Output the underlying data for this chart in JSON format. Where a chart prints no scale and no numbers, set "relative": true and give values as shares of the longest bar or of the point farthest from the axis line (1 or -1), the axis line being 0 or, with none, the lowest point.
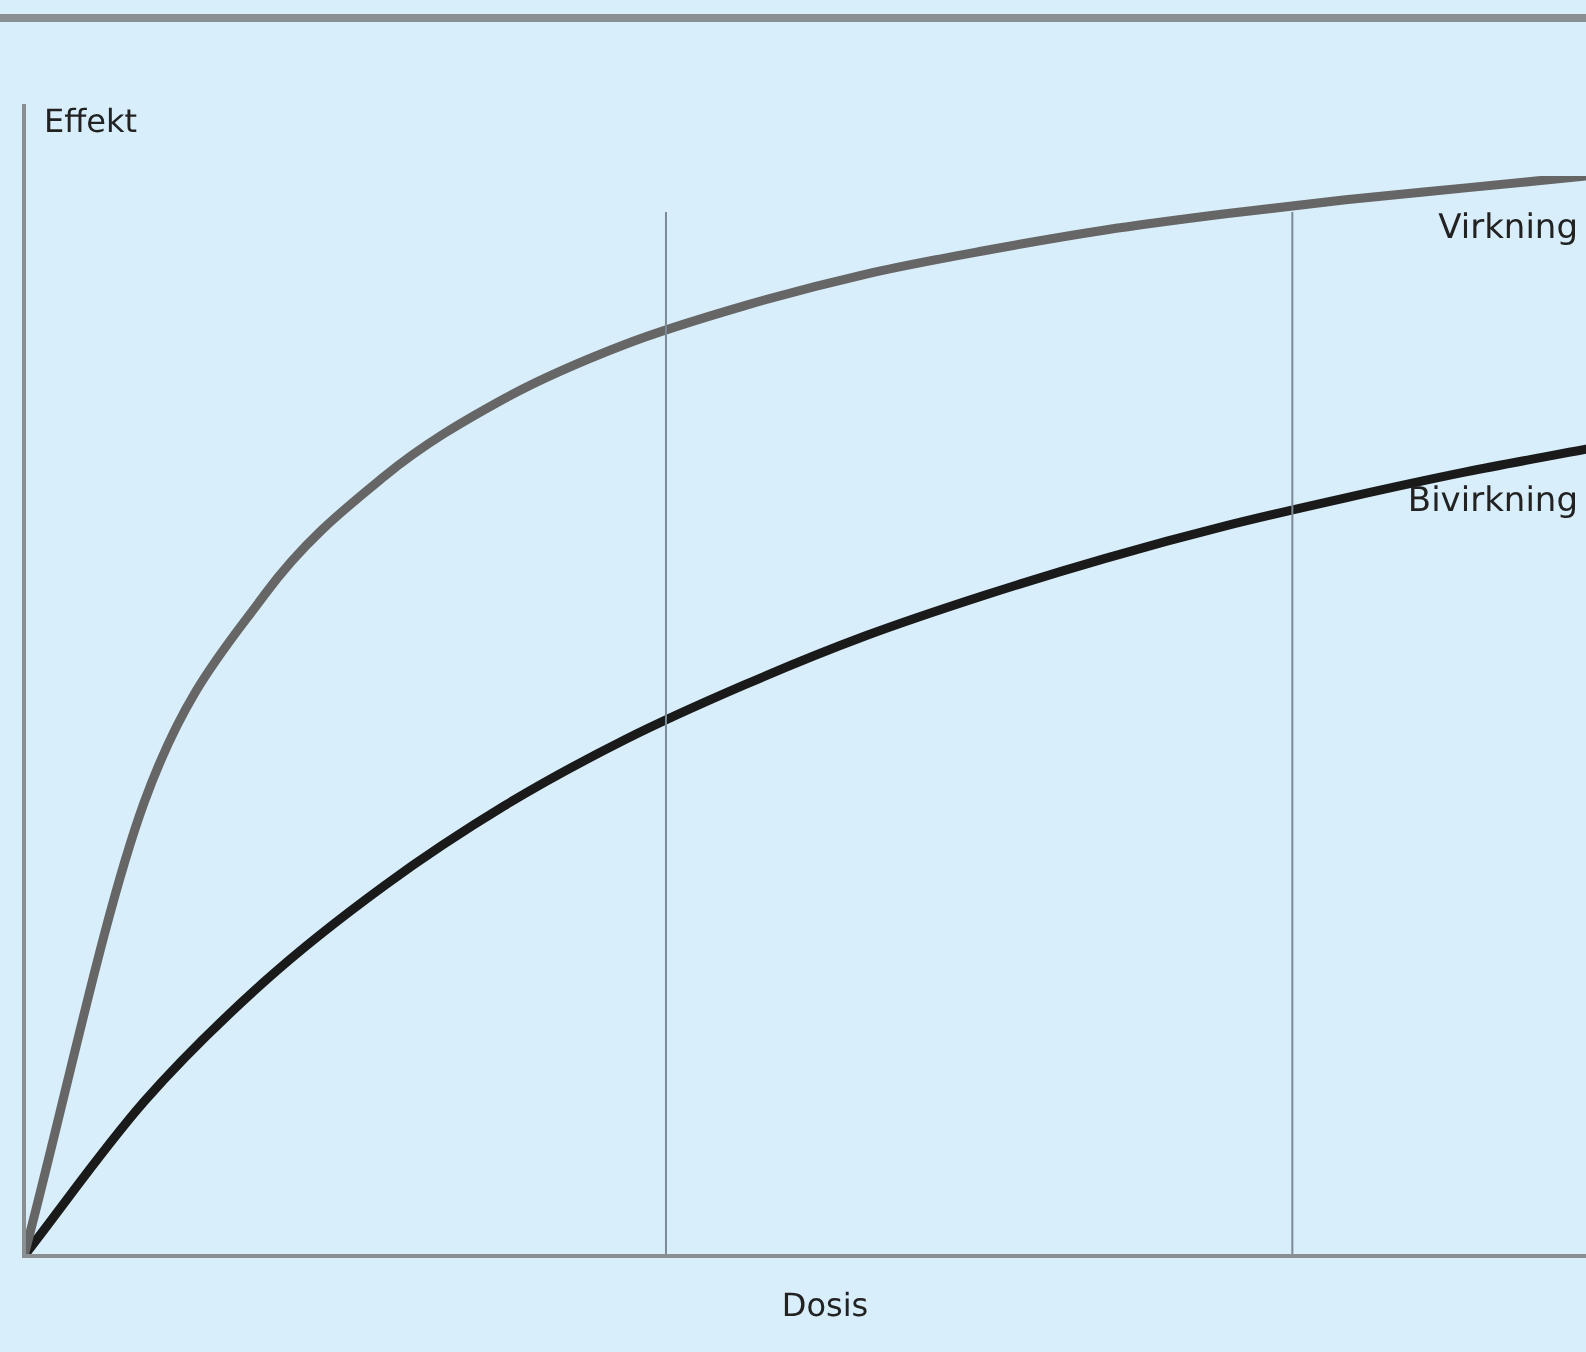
{
  "chart_data": {
    "type": "line",
    "relative": true,
    "xlabel": "Dosis",
    "ylabel": "Effekt",
    "legend": false,
    "line_style": "solid",
    "marker": "none",
    "categories": [
      null,
      null,
      null,
      null,
      null,
      null,
      null,
      null,
      null,
      null,
      null,
      null,
      null,
      null
    ],
    "series": [
      {
        "name": "Virkning",
        "color": "#666666",
        "values": [
          0,
          0.42,
          0.612,
          0.722,
          0.794,
          0.844,
          0.88,
          0.909,
          0.931,
          0.95,
          0.965,
          0.978,
          0.989,
          1
        ]
      },
      {
        "name": "Bivirkning",
        "color": "#1a1a1a",
        "values": [
          0,
          0.143,
          0.254,
          0.343,
          0.417,
          0.478,
          0.529,
          0.574,
          0.612,
          0.646,
          0.676,
          0.702,
          0.726,
          0.747
        ]
      }
    ]
  }
}
